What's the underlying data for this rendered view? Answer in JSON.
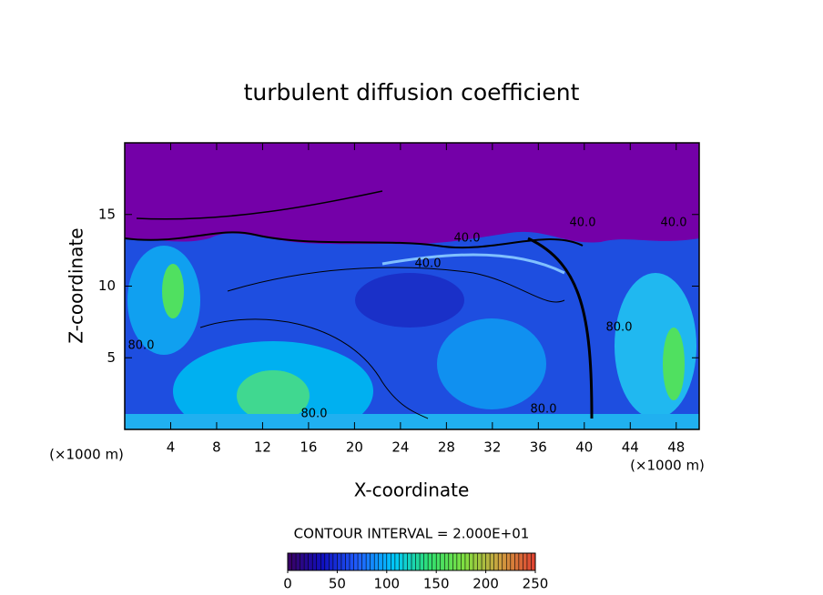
{
  "chart_data": {
    "type": "contour",
    "title": "turbulent diffusion coefficient",
    "x_label": "X-coordinate",
    "y_label": "Z-coordinate",
    "x_unit": "(×1000 m)",
    "x_unit_right": "(×1000 m)",
    "xlim": [
      0,
      50
    ],
    "xticks": [
      4,
      8,
      12,
      16,
      20,
      24,
      28,
      32,
      36,
      40,
      44,
      48
    ],
    "ylim": [
      0,
      20
    ],
    "yticks": [
      5,
      10,
      15
    ],
    "contour_labels": [
      "40.0",
      "40.0",
      "40.0",
      "40.0",
      "80.0",
      "80.0",
      "80.0",
      "80.0"
    ],
    "colorbar": {
      "title": "CONTOUR INTERVAL = 2.000E+01",
      "clim": [
        0,
        250
      ],
      "ticks": [
        0,
        50,
        100,
        150,
        200,
        250
      ],
      "colormap": [
        "#3a0060",
        "#1010c0",
        "#2060ff",
        "#00c8ff",
        "#30e070",
        "#80e040",
        "#d0a040",
        "#e04030"
      ]
    }
  }
}
